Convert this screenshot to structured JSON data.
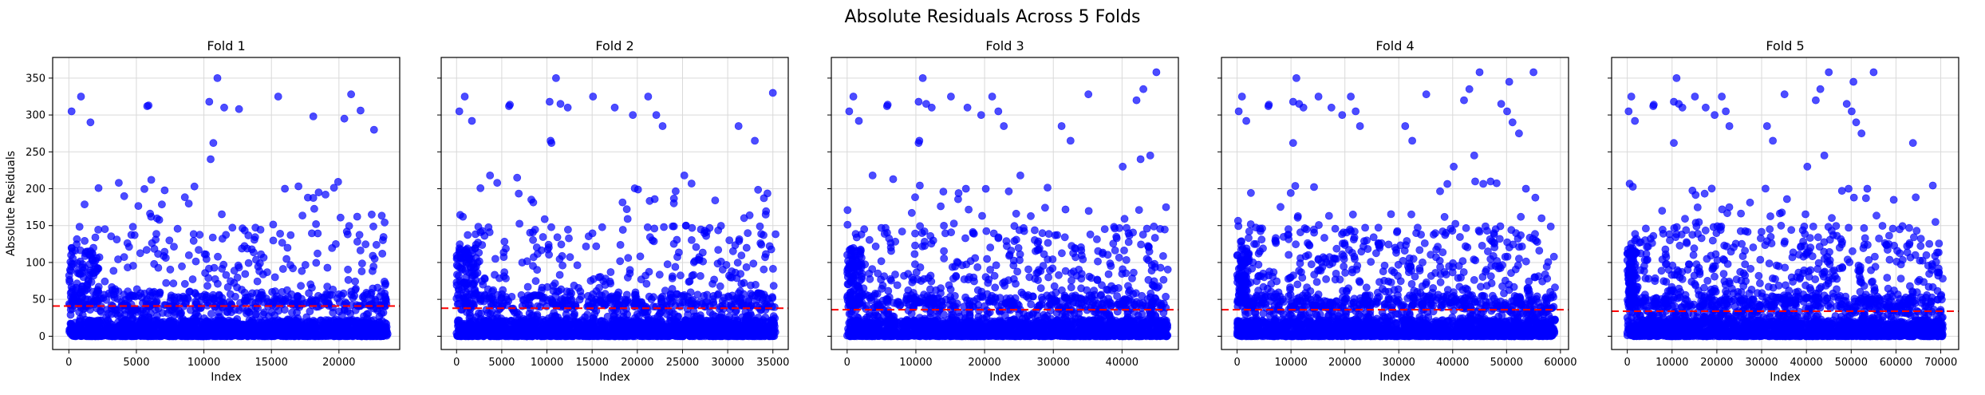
{
  "figure": {
    "title": "Absolute Residuals Across 5 Folds"
  },
  "chart_data": [
    {
      "type": "scatter",
      "title": "Fold 1",
      "xlabel": "Index",
      "ylabel": "Absolute Residuals",
      "xlim": [
        -1200,
        24500
      ],
      "ylim": [
        -18,
        378
      ],
      "xticks": [
        0,
        5000,
        10000,
        15000,
        20000
      ],
      "yticks": [
        0,
        50,
        100,
        150,
        200,
        250,
        300,
        350
      ],
      "threshold": 41,
      "n": 23600,
      "grid": true,
      "marker_color": "#0000ff",
      "threshold_color": "#ff0000",
      "notable_points": [
        [
          200,
          305
        ],
        [
          900,
          325
        ],
        [
          1600,
          290
        ],
        [
          5800,
          312
        ],
        [
          5900,
          313
        ],
        [
          11000,
          350
        ],
        [
          10400,
          318
        ],
        [
          11500,
          310
        ],
        [
          12600,
          308
        ],
        [
          15500,
          325
        ],
        [
          18100,
          298
        ],
        [
          20400,
          295
        ],
        [
          20900,
          328
        ],
        [
          21600,
          306
        ],
        [
          22600,
          280
        ],
        [
          10700,
          262
        ],
        [
          10500,
          240
        ],
        [
          6100,
          212
        ],
        [
          3700,
          208
        ],
        [
          4100,
          190
        ],
        [
          9300,
          203
        ],
        [
          16000,
          200
        ],
        [
          17700,
          188
        ],
        [
          18500,
          195
        ],
        [
          18300,
          152
        ]
      ]
    },
    {
      "type": "scatter",
      "title": "Fold 2",
      "xlabel": "Index",
      "ylabel": "",
      "xlim": [
        -1700,
        36700
      ],
      "ylim": [
        -18,
        378
      ],
      "xticks": [
        0,
        5000,
        10000,
        15000,
        20000,
        25000,
        30000,
        35000
      ],
      "yticks": [
        0,
        50,
        100,
        150,
        200,
        250,
        300,
        350
      ],
      "threshold": 38,
      "n": 35300,
      "grid": true,
      "marker_color": "#0000ff",
      "threshold_color": "#ff0000",
      "notable_points": [
        [
          300,
          305
        ],
        [
          900,
          325
        ],
        [
          1700,
          292
        ],
        [
          5800,
          312
        ],
        [
          5900,
          314
        ],
        [
          11000,
          350
        ],
        [
          10300,
          318
        ],
        [
          11500,
          315
        ],
        [
          12300,
          310
        ],
        [
          15100,
          325
        ],
        [
          17500,
          310
        ],
        [
          19500,
          300
        ],
        [
          21200,
          325
        ],
        [
          22100,
          300
        ],
        [
          22800,
          285
        ],
        [
          31200,
          285
        ],
        [
          33000,
          265
        ],
        [
          35000,
          330
        ],
        [
          10500,
          262
        ],
        [
          10400,
          265
        ],
        [
          3700,
          218
        ],
        [
          4500,
          208
        ],
        [
          6700,
          215
        ],
        [
          25200,
          218
        ],
        [
          26000,
          207
        ],
        [
          34200,
          165
        ]
      ]
    },
    {
      "type": "scatter",
      "title": "Fold 3",
      "xlabel": "Index",
      "ylabel": "",
      "xlim": [
        -2300,
        48200
      ],
      "ylim": [
        -18,
        378
      ],
      "xticks": [
        0,
        10000,
        20000,
        30000,
        40000
      ],
      "yticks": [
        0,
        50,
        100,
        150,
        200,
        250,
        300,
        350
      ],
      "threshold": 36,
      "n": 46700,
      "grid": true,
      "marker_color": "#0000ff",
      "threshold_color": "#ff0000",
      "notable_points": [
        [
          300,
          305
        ],
        [
          900,
          325
        ],
        [
          1700,
          292
        ],
        [
          5800,
          312
        ],
        [
          5900,
          314
        ],
        [
          11000,
          350
        ],
        [
          10400,
          318
        ],
        [
          11500,
          315
        ],
        [
          12300,
          310
        ],
        [
          15100,
          325
        ],
        [
          17500,
          310
        ],
        [
          19500,
          300
        ],
        [
          21100,
          325
        ],
        [
          22000,
          305
        ],
        [
          22800,
          285
        ],
        [
          31200,
          285
        ],
        [
          32500,
          265
        ],
        [
          35100,
          328
        ],
        [
          42100,
          320
        ],
        [
          43100,
          335
        ],
        [
          45000,
          358
        ],
        [
          10400,
          262
        ],
        [
          10500,
          265
        ],
        [
          44100,
          245
        ],
        [
          40100,
          230
        ],
        [
          42700,
          240
        ],
        [
          3700,
          218
        ],
        [
          6700,
          213
        ],
        [
          25200,
          218
        ],
        [
          46400,
          175
        ]
      ]
    },
    {
      "type": "scatter",
      "title": "Fold 4",
      "xlabel": "Index",
      "ylabel": "",
      "xlim": [
        -2900,
        61500
      ],
      "ylim": [
        -18,
        378
      ],
      "xticks": [
        0,
        10000,
        20000,
        30000,
        40000,
        50000,
        60000
      ],
      "yticks": [
        0,
        50,
        100,
        150,
        200,
        250,
        300,
        350
      ],
      "threshold": 36,
      "n": 59000,
      "grid": true,
      "marker_color": "#0000ff",
      "threshold_color": "#ff0000",
      "notable_points": [
        [
          300,
          305
        ],
        [
          900,
          325
        ],
        [
          1700,
          292
        ],
        [
          5800,
          312
        ],
        [
          5900,
          314
        ],
        [
          11000,
          350
        ],
        [
          10400,
          318
        ],
        [
          11500,
          315
        ],
        [
          12300,
          310
        ],
        [
          15100,
          325
        ],
        [
          17500,
          310
        ],
        [
          19500,
          300
        ],
        [
          21100,
          325
        ],
        [
          22000,
          305
        ],
        [
          22800,
          285
        ],
        [
          31200,
          285
        ],
        [
          32500,
          265
        ],
        [
          35100,
          328
        ],
        [
          42100,
          320
        ],
        [
          43100,
          335
        ],
        [
          45000,
          358
        ],
        [
          49000,
          315
        ],
        [
          50100,
          305
        ],
        [
          50500,
          345
        ],
        [
          51100,
          290
        ],
        [
          52300,
          275
        ],
        [
          55000,
          358
        ],
        [
          40200,
          230
        ],
        [
          44000,
          245
        ],
        [
          10400,
          262
        ],
        [
          53600,
          200
        ],
        [
          56500,
          160
        ]
      ]
    },
    {
      "type": "scatter",
      "title": "Fold 5",
      "xlabel": "Index",
      "ylabel": "",
      "xlim": [
        -3500,
        74000
      ],
      "ylim": [
        -18,
        378
      ],
      "xticks": [
        0,
        10000,
        20000,
        30000,
        40000,
        50000,
        60000,
        70000
      ],
      "yticks": [
        0,
        50,
        100,
        150,
        200,
        250,
        300,
        350
      ],
      "threshold": 34,
      "n": 70500,
      "grid": true,
      "marker_color": "#0000ff",
      "threshold_color": "#ff0000",
      "notable_points": [
        [
          300,
          305
        ],
        [
          900,
          325
        ],
        [
          1700,
          292
        ],
        [
          5800,
          312
        ],
        [
          5900,
          314
        ],
        [
          11000,
          350
        ],
        [
          10400,
          318
        ],
        [
          11500,
          315
        ],
        [
          12300,
          310
        ],
        [
          15100,
          325
        ],
        [
          17500,
          310
        ],
        [
          19500,
          300
        ],
        [
          21100,
          325
        ],
        [
          22000,
          305
        ],
        [
          22800,
          285
        ],
        [
          31200,
          285
        ],
        [
          32500,
          265
        ],
        [
          35100,
          328
        ],
        [
          42100,
          320
        ],
        [
          43100,
          335
        ],
        [
          45000,
          358
        ],
        [
          49000,
          315
        ],
        [
          50100,
          305
        ],
        [
          50500,
          345
        ],
        [
          51100,
          290
        ],
        [
          52300,
          275
        ],
        [
          55000,
          358
        ],
        [
          40200,
          230
        ],
        [
          44000,
          245
        ],
        [
          10400,
          262
        ],
        [
          63800,
          262
        ],
        [
          53600,
          200
        ],
        [
          59500,
          185
        ]
      ]
    }
  ]
}
